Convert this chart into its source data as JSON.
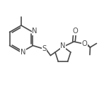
{
  "bg_color": "#ffffff",
  "line_color": "#4a4a4a",
  "atom_color": "#4a4a4a",
  "figsize": [
    1.47,
    1.43
  ],
  "dpi": 100,
  "bond_lw": 1.2,
  "font_size": 7.2,
  "xlim": [
    0.0,
    1.47
  ],
  "ylim": [
    0.0,
    1.43
  ]
}
